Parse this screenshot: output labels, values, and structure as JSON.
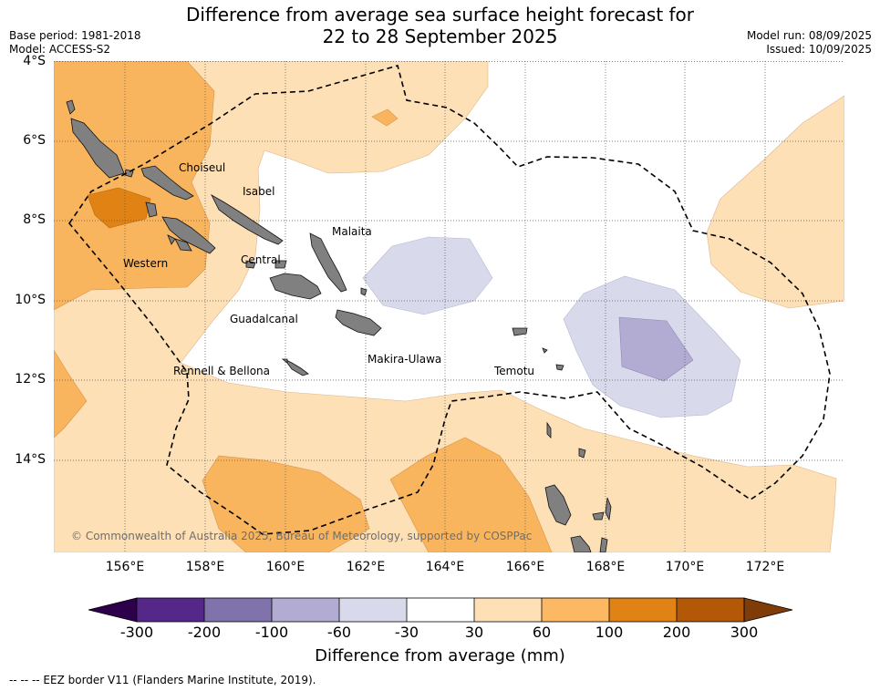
{
  "header": {
    "title_line1": "Difference from average sea surface height forecast for",
    "title_line2": "22 to 28 September 2025",
    "base_period": "Base period: 1981-2018",
    "model": "Model: ACCESS-S2",
    "model_run": "Model run: 08/09/2025",
    "issued": "Issued: 10/09/2025"
  },
  "map": {
    "latitude_labels": [
      "4°S",
      "6°S",
      "8°S",
      "10°S",
      "12°S",
      "14°S"
    ],
    "longitude_labels": [
      "156°E",
      "158°E",
      "160°E",
      "162°E",
      "164°E",
      "166°E",
      "168°E",
      "170°E",
      "172°E"
    ],
    "provinces": {
      "choiseul": "Choiseul",
      "isabel": "Isabel",
      "malaita": "Malaita",
      "western": "Western",
      "central": "Central",
      "guadalcanal": "Guadalcanal",
      "rennell_bellona": "Rennell & Bellona",
      "makira_ulawa": "Makira-Ulawa",
      "temotu": "Temotu"
    },
    "copyright": "© Commonwealth of Australia 2025, Bureau of Meteorology, supported by COSPPac",
    "colors": {
      "land": "#808080",
      "pos_30_60": "#fde0b6",
      "pos_60_100": "#f9b55e",
      "pos_100_200": "#e08214",
      "neg_30_60": "#d8daeb",
      "neg_60_100": "#b2abd2",
      "eez": "#000000"
    }
  },
  "colorbar": {
    "title": "Difference from average (mm)",
    "tick_labels": [
      "-300",
      "-200",
      "-100",
      "-60",
      "-30",
      "30",
      "60",
      "100",
      "200",
      "300"
    ],
    "colors": [
      "#542788",
      "#8073ac",
      "#b2abd2",
      "#d8daeb",
      "#ffffff",
      "#fee0b6",
      "#fdb863",
      "#e08214",
      "#b35806"
    ],
    "under_color": "#2d004b",
    "over_color": "#7f3b08"
  },
  "footer": {
    "legend_text": "--  --  -- EEZ border V11 (Flanders Marine Institute, 2019)."
  }
}
